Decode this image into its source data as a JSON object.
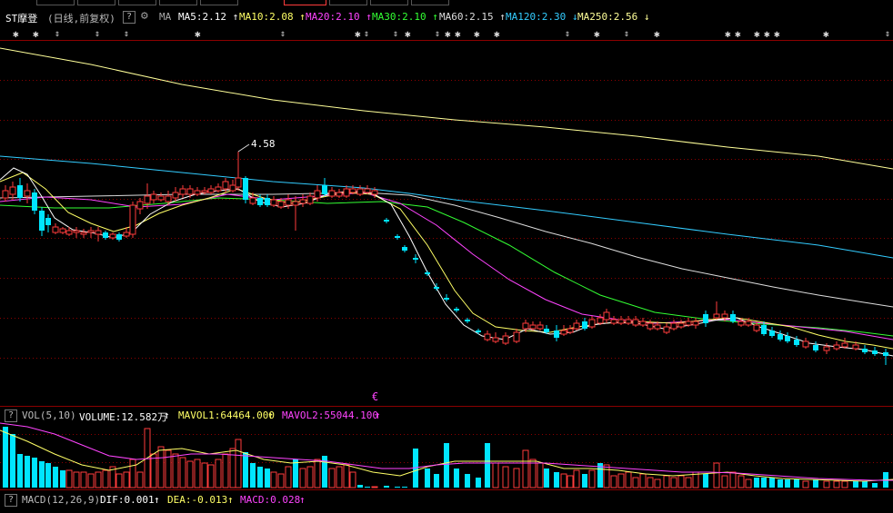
{
  "header": {
    "stock_name": "ST摩登",
    "mode": "(日线,前复权)",
    "help": "?",
    "ma_label": "MA",
    "items": [
      {
        "text": "MA5:2.12",
        "color": "#ffffff",
        "arrow": "↑"
      },
      {
        "text": "MA10:2.08",
        "color": "#ffff66",
        "arrow": "↑"
      },
      {
        "text": "MA20:2.10",
        "color": "#ff44ff",
        "arrow": "↑"
      },
      {
        "text": "MA30:2.10",
        "color": "#33ff33",
        "arrow": "↑"
      },
      {
        "text": "MA60:2.15",
        "color": "#dddddd",
        "arrow": "↑"
      },
      {
        "text": "MA120:2.30",
        "color": "#33ccff",
        "arrow": "↓"
      },
      {
        "text": "MA250:2.56",
        "color": "#ffff99",
        "arrow": "↓"
      }
    ]
  },
  "price_panel": {
    "high_marker": "4.58",
    "event_marker": "€"
  },
  "volume_panel": {
    "help": "?",
    "label": "VOL(5,10)",
    "volume": "VOLUME:12.582万",
    "mavol1": "MAVOL1:64464.000",
    "mavol2": "MAVOL2:55044.100",
    "arrow": "↑"
  },
  "macd_panel": {
    "help": "?",
    "label": "MACD(12,26,9)",
    "dif": "DIF:0.001",
    "dea": "DEA:-0.013",
    "macd": "MACD:0.028",
    "arrow": "↑"
  },
  "colors": {
    "up": "#ff3c3c",
    "down": "#00e5ff",
    "ma5": "#ffffff",
    "ma10": "#ffff66",
    "ma20": "#ff44ff",
    "ma30": "#33ff33",
    "ma60": "#dddddd",
    "ma120": "#33ccff",
    "ma250": "#ffff99",
    "grid": "#8b0000"
  }
}
